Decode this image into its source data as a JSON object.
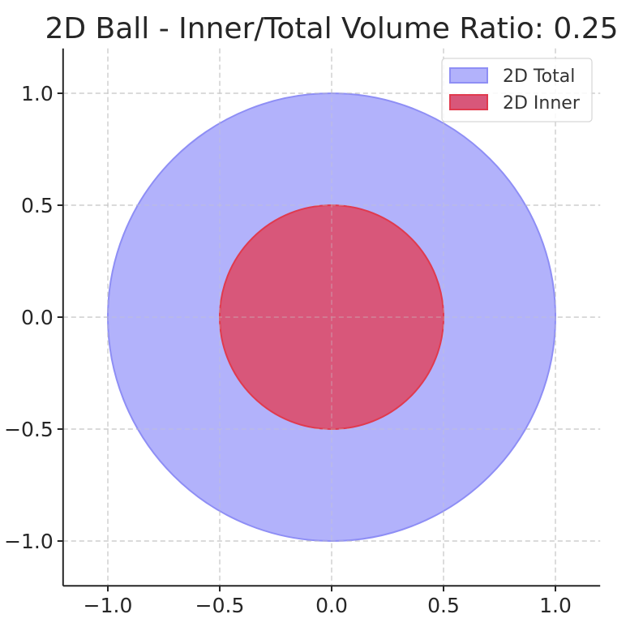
{
  "chart_data": {
    "type": "area",
    "title": "2D Ball - Inner/Total Volume Ratio: 0.25",
    "xlabel": "",
    "ylabel": "",
    "xlim": [
      -1.2,
      1.2
    ],
    "ylim": [
      -1.2,
      1.2
    ],
    "xticks": [
      -1.0,
      -0.5,
      0.0,
      0.5,
      1.0
    ],
    "yticks": [
      -1.0,
      -0.5,
      0.0,
      0.5,
      1.0
    ],
    "xtick_labels": [
      "−1.0",
      "−0.5",
      "0.0",
      "0.5",
      "1.0"
    ],
    "ytick_labels": [
      "−1.0",
      "−0.5",
      "0.0",
      "0.5",
      "1.0"
    ],
    "grid": true,
    "legend_position": "top-right",
    "series": [
      {
        "name": "2D Total",
        "shape": "circle",
        "center": [
          0,
          0
        ],
        "radius": 1.0,
        "fill": "#b2b2fb",
        "edge": "#8e8ef5"
      },
      {
        "name": "2D Inner",
        "shape": "circle",
        "center": [
          0,
          0
        ],
        "radius": 0.5,
        "fill": "#d8577a",
        "edge": "#e03a4e"
      }
    ]
  }
}
